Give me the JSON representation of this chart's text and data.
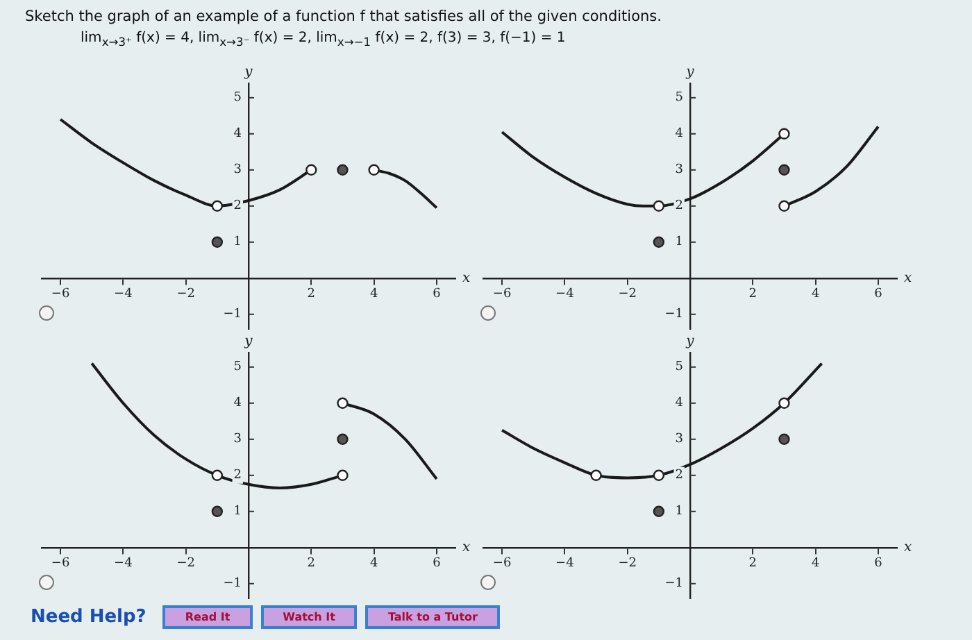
{
  "chart_data": [
    {
      "type": "line",
      "title": "Sketch the graph of an example of a function f that satisfies all of the given conditions.",
      "subtitle": "lim$_{x→3⁺}$ f(x) = 4,   lim$_{x→3⁻}$ f(x) = 2,   lim$_{x→−1}$ f(x) = 2,   f(3) = 3,   f(−1) = 1",
      "xlabel": "x",
      "ylabel": "y",
      "xlim": [
        -6.6,
        6.6
      ],
      "ylim": [
        -1.4,
        5.4
      ],
      "xticks": [
        -6,
        -4,
        -2,
        2,
        4,
        6
      ],
      "yticks": [
        -1,
        1,
        2,
        3,
        4,
        5
      ],
      "legend": false,
      "series": [
        {
          "type": "line",
          "marker": "none",
          "color": "#1a1a1a",
          "x": [
            -6,
            -5,
            -4,
            -3,
            -2,
            -1,
            0,
            1,
            2
          ],
          "values": [
            4.4,
            3.75,
            3.2,
            2.7,
            2.3,
            2.0,
            2.15,
            2.45,
            3.0
          ]
        },
        {
          "type": "line",
          "marker": "none",
          "color": "#1a1a1a",
          "x": [
            4,
            4.5,
            5,
            5.5,
            6
          ],
          "values": [
            3.0,
            2.9,
            2.7,
            2.35,
            1.95
          ]
        },
        {
          "type": "scatter",
          "marker": "circle",
          "color": "#ffffff",
          "x": [
            -1,
            2,
            4
          ],
          "values": [
            2,
            3,
            3
          ]
        },
        {
          "type": "scatter",
          "marker": "circle",
          "color": "#555555",
          "x": [
            -1,
            3
          ],
          "values": [
            1,
            3
          ]
        }
      ]
    },
    {
      "type": "line",
      "xlabel": "x",
      "ylabel": "y",
      "xlim": [
        -6.6,
        6.6
      ],
      "ylim": [
        -1.4,
        5.4
      ],
      "xticks": [
        -6,
        -4,
        -2,
        2,
        4,
        6
      ],
      "yticks": [
        -1,
        1,
        2,
        3,
        4,
        5
      ],
      "legend": false,
      "series": [
        {
          "type": "line",
          "marker": "none",
          "color": "#1a1a1a",
          "x": [
            -6,
            -5,
            -4,
            -3,
            -2,
            -1.5,
            -1,
            0,
            1,
            2,
            3
          ],
          "values": [
            4.05,
            3.35,
            2.8,
            2.35,
            2.05,
            2.0,
            2.0,
            2.2,
            2.65,
            3.25,
            4.0
          ]
        },
        {
          "type": "line",
          "marker": "none",
          "color": "#1a1a1a",
          "x": [
            3,
            4,
            5,
            6
          ],
          "values": [
            2.0,
            2.4,
            3.1,
            4.2
          ]
        },
        {
          "type": "scatter",
          "marker": "circle",
          "color": "#ffffff",
          "x": [
            -1,
            3,
            3
          ],
          "values": [
            2,
            4,
            2
          ]
        },
        {
          "type": "scatter",
          "marker": "circle",
          "color": "#555555",
          "x": [
            -1,
            3
          ],
          "values": [
            1,
            3
          ]
        }
      ]
    },
    {
      "type": "line",
      "xlabel": "x",
      "ylabel": "y",
      "xlim": [
        -6.6,
        6.6
      ],
      "ylim": [
        -1.4,
        5.4
      ],
      "xticks": [
        -6,
        -4,
        -2,
        2,
        4,
        6
      ],
      "yticks": [
        -1,
        1,
        2,
        3,
        4,
        5
      ],
      "legend": false,
      "series": [
        {
          "type": "line",
          "marker": "none",
          "color": "#1a1a1a",
          "x": [
            -5,
            -4,
            -3,
            -2,
            -1,
            0,
            1,
            2,
            3
          ],
          "values": [
            5.1,
            4.0,
            3.1,
            2.45,
            2.0,
            1.75,
            1.65,
            1.75,
            2.0
          ]
        },
        {
          "type": "line",
          "marker": "none",
          "color": "#1a1a1a",
          "x": [
            3,
            4,
            5,
            6
          ],
          "values": [
            4.0,
            3.7,
            3.0,
            1.9
          ]
        },
        {
          "type": "scatter",
          "marker": "circle",
          "color": "#ffffff",
          "x": [
            -1,
            3,
            3
          ],
          "values": [
            2,
            2,
            4
          ]
        },
        {
          "type": "scatter",
          "marker": "circle",
          "color": "#555555",
          "x": [
            -1,
            3
          ],
          "values": [
            1,
            3
          ]
        }
      ]
    },
    {
      "type": "line",
      "xlabel": "x",
      "ylabel": "y",
      "xlim": [
        -6.6,
        6.6
      ],
      "ylim": [
        -1.4,
        5.4
      ],
      "xticks": [
        -6,
        -4,
        -2,
        2,
        4,
        6
      ],
      "yticks": [
        -1,
        1,
        2,
        3,
        4,
        5
      ],
      "legend": false,
      "annotations": [
        "Need Help?",
        "Read It",
        "Watch It",
        "Talk to a Tutor"
      ],
      "series": [
        {
          "type": "line",
          "marker": "none",
          "color": "#1a1a1a",
          "x": [
            -6,
            -5,
            -4,
            -3,
            -2,
            -1,
            0,
            1,
            2,
            3,
            4.2
          ],
          "values": [
            3.25,
            2.75,
            2.35,
            2.0,
            1.93,
            2.0,
            2.3,
            2.75,
            3.3,
            4.0,
            5.1
          ]
        },
        {
          "type": "scatter",
          "marker": "circle",
          "color": "#ffffff",
          "x": [
            -3,
            -1,
            3
          ],
          "values": [
            2,
            2,
            4
          ]
        },
        {
          "type": "scatter",
          "marker": "circle",
          "color": "#555555",
          "x": [
            -1,
            3
          ],
          "values": [
            1,
            3
          ]
        }
      ]
    }
  ]
}
